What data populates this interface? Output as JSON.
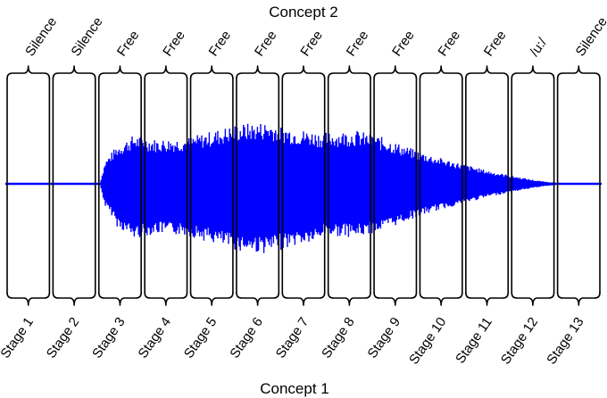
{
  "concept_top": "Concept 2",
  "concept_bottom": "Concept 1",
  "top_labels": [
    "Silence",
    "Silence",
    "Free",
    "Free",
    "Free",
    "Free",
    "Free",
    "Free",
    "Free",
    "Free",
    "Free",
    "/u:/",
    "Silence"
  ],
  "stages": [
    "Stage 1",
    "Stage 2",
    "Stage 3",
    "Stage 4",
    "Stage 5",
    "Stage 6",
    "Stage 7",
    "Stage 8",
    "Stage 9",
    "Stage 10",
    "Stage 11",
    "Stage 12",
    "Stage 13"
  ],
  "waveform_color": "#0000ff"
}
